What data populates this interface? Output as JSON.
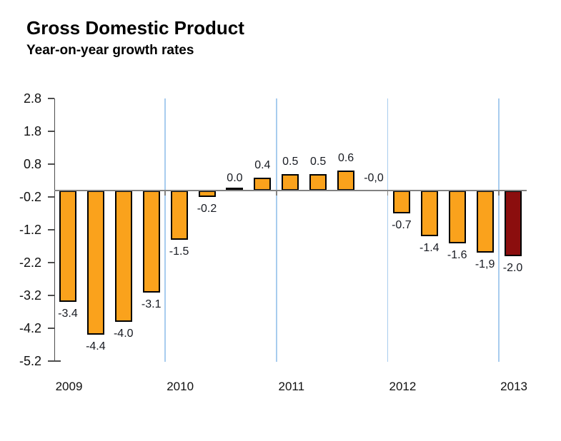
{
  "chart_data": {
    "type": "bar",
    "title": "Gross Domestic Product",
    "subtitle": "Year-on-year growth rates",
    "xlabel": "",
    "ylabel": "",
    "ylim": [
      -5.2,
      2.8
    ],
    "y_ticks": [
      2.8,
      1.8,
      0.8,
      -0.2,
      -1.2,
      -2.2,
      -3.2,
      -4.2,
      -5.2
    ],
    "x_year_labels": [
      "2009",
      "2010",
      "2011",
      "2012",
      "2013"
    ],
    "bars_per_year": [
      4,
      4,
      4,
      4,
      1
    ],
    "grid": "vertical light-blue separator lines between year groups",
    "legend": "none",
    "bars": [
      {
        "period": "2009-Q1",
        "value": -3.4,
        "label": "-3.4",
        "style": "normal"
      },
      {
        "period": "2009-Q2",
        "value": -4.4,
        "label": "-4.4",
        "style": "normal"
      },
      {
        "period": "2009-Q3",
        "value": -4.0,
        "label": "-4.0",
        "style": "normal"
      },
      {
        "period": "2009-Q4",
        "value": -3.1,
        "label": "-3.1",
        "style": "normal"
      },
      {
        "period": "2010-Q1",
        "value": -1.5,
        "label": "-1.5",
        "style": "normal"
      },
      {
        "period": "2010-Q2",
        "value": -0.2,
        "label": "-0.2",
        "style": "normal"
      },
      {
        "period": "2010-Q3",
        "value": 0.0,
        "label": "0.0",
        "style": "flat-line"
      },
      {
        "period": "2010-Q4",
        "value": 0.4,
        "label": "0.4",
        "style": "normal"
      },
      {
        "period": "2011-Q1",
        "value": 0.5,
        "label": "0.5",
        "style": "normal"
      },
      {
        "period": "2011-Q2",
        "value": 0.5,
        "label": "0.5",
        "style": "normal"
      },
      {
        "period": "2011-Q3",
        "value": 0.6,
        "label": "0.6",
        "style": "normal"
      },
      {
        "period": "2011-Q4",
        "value": -0.0,
        "label": "-0,0",
        "style": "hidden"
      },
      {
        "period": "2012-Q1",
        "value": -0.7,
        "label": "-0.7",
        "style": "normal"
      },
      {
        "period": "2012-Q2",
        "value": -1.4,
        "label": "-1.4",
        "style": "normal"
      },
      {
        "period": "2012-Q3",
        "value": -1.6,
        "label": "-1.6",
        "style": "normal"
      },
      {
        "period": "2012-Q4",
        "value": -1.9,
        "label": "-1,9",
        "style": "normal"
      },
      {
        "period": "2013-Q1",
        "value": -2.0,
        "label": "-2.0",
        "style": "highlight"
      }
    ],
    "colors": {
      "bar_fill": "#FAA21C",
      "bar_highlight_fill": "#8B0E0E",
      "bar_border": "#000000",
      "gridline": "#A8CCEE",
      "zero_line": "#828282",
      "axis_line": "#4D4D4D",
      "title_text": "#000000",
      "data_label_text": "#171A21",
      "axis_label_text": "#101010",
      "background": "#FFFFFF"
    }
  }
}
